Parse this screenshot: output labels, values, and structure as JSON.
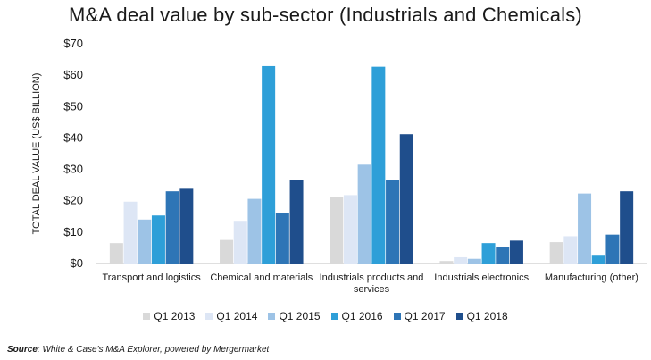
{
  "chart_data": {
    "type": "bar",
    "title": "M&A deal value by sub-sector (Industrials and Chemicals)",
    "ylabel": "TOTAL DEAL VALUE (US$ BILLION)",
    "xlabel": "",
    "ylim": [
      0,
      70
    ],
    "yticks": [
      "$0",
      "$10",
      "$20",
      "$30",
      "$40",
      "$50",
      "$60",
      "$70"
    ],
    "categories": [
      [
        "Transport and logistics"
      ],
      [
        "Chemical and materials"
      ],
      [
        "Industrials products and",
        "services"
      ],
      [
        "Industrials electronics"
      ],
      [
        "Manufacturing (other)"
      ]
    ],
    "series": [
      {
        "name": "Q1 2013",
        "color": "#d9d9d9",
        "values": [
          6.5,
          7.5,
          21.3,
          0.8,
          6.8
        ]
      },
      {
        "name": "Q1 2014",
        "color": "#dde6f5",
        "values": [
          19.7,
          13.6,
          21.8,
          2.0,
          8.7
        ]
      },
      {
        "name": "Q1 2015",
        "color": "#9dc3e6",
        "values": [
          14.0,
          20.6,
          31.5,
          1.5,
          22.3
        ]
      },
      {
        "name": "Q1 2016",
        "color": "#2e9fd8",
        "values": [
          15.3,
          62.9,
          62.7,
          6.5,
          2.5
        ]
      },
      {
        "name": "Q1 2017",
        "color": "#2e75b6",
        "values": [
          23.0,
          16.2,
          26.6,
          5.4,
          9.2
        ]
      },
      {
        "name": "Q1 2018",
        "color": "#1f4e8c",
        "values": [
          23.8,
          26.7,
          41.2,
          7.3,
          23.0
        ]
      }
    ],
    "grid": false,
    "legend_position": "bottom"
  },
  "source": {
    "label": "Source",
    "text": ": White & Case's M&A Explorer, powered by Mergermarket"
  }
}
